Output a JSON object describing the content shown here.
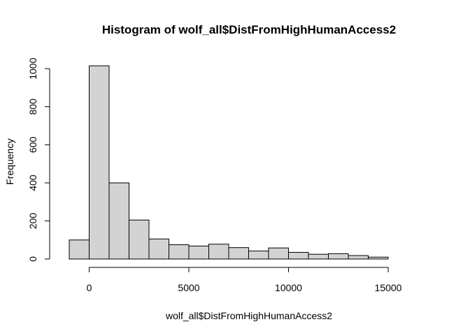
{
  "chart_data": {
    "type": "bar",
    "title": "Histogram of wolf_all$DistFromHighHumanAccess2",
    "xlabel": "wolf_all$DistFromHighHumanAccess2",
    "ylabel": "Frequency",
    "bins": [
      {
        "x0": -1000,
        "x1": 0,
        "count": 100
      },
      {
        "x0": 0,
        "x1": 1000,
        "count": 1015
      },
      {
        "x0": 1000,
        "x1": 2000,
        "count": 400
      },
      {
        "x0": 2000,
        "x1": 3000,
        "count": 205
      },
      {
        "x0": 3000,
        "x1": 4000,
        "count": 105
      },
      {
        "x0": 4000,
        "x1": 5000,
        "count": 75
      },
      {
        "x0": 5000,
        "x1": 6000,
        "count": 68
      },
      {
        "x0": 6000,
        "x1": 7000,
        "count": 78
      },
      {
        "x0": 7000,
        "x1": 8000,
        "count": 60
      },
      {
        "x0": 8000,
        "x1": 9000,
        "count": 42
      },
      {
        "x0": 9000,
        "x1": 10000,
        "count": 58
      },
      {
        "x0": 10000,
        "x1": 11000,
        "count": 35
      },
      {
        "x0": 11000,
        "x1": 12000,
        "count": 25
      },
      {
        "x0": 12000,
        "x1": 13000,
        "count": 28
      },
      {
        "x0": 13000,
        "x1": 14000,
        "count": 18
      },
      {
        "x0": 14000,
        "x1": 15000,
        "count": 10
      },
      {
        "x0": 15000,
        "x1": 16000,
        "count": 0
      },
      {
        "x0": 16000,
        "x1": 17000,
        "count": 0
      }
    ],
    "xticks": [
      0,
      5000,
      10000,
      15000
    ],
    "xtick_labels": [
      "0",
      "5000",
      "10000",
      "15000"
    ],
    "yticks": [
      0,
      200,
      400,
      600,
      800,
      1000
    ],
    "ytick_labels": [
      "0",
      "200",
      "400",
      "600",
      "800",
      "1000"
    ],
    "xlim": [
      -1000,
      17000
    ],
    "ylim": [
      0,
      1015
    ],
    "grid": false,
    "colors": {
      "bar_fill": "#d3d3d3",
      "bar_stroke": "#000000"
    }
  }
}
